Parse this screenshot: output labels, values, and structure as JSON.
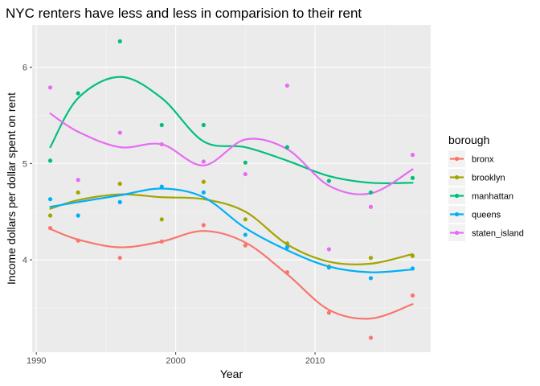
{
  "chart_data": {
    "type": "scatter",
    "title": "NYC renters have less and less in comparision to their rent",
    "xlabel": "Year",
    "ylabel": "Income dollars per dollar spent on rent",
    "xlim": [
      1989.7,
      2018.3
    ],
    "ylim": [
      3.04,
      6.44
    ],
    "xticks": [
      1990,
      2000,
      2010
    ],
    "yticks": [
      4,
      5,
      6
    ],
    "grid": true,
    "smooth": "loess",
    "legend": {
      "title": "borough",
      "position": "right"
    },
    "x": [
      1991,
      1993,
      1996,
      1999,
      2002,
      2005,
      2008,
      2011,
      2014,
      2017
    ],
    "series": [
      {
        "name": "bronx",
        "color": "#F8766D",
        "values": [
          4.33,
          4.2,
          4.02,
          4.19,
          4.36,
          4.15,
          3.87,
          3.45,
          3.19,
          3.63
        ]
      },
      {
        "name": "brooklyn",
        "color": "#A3A500",
        "values": [
          4.46,
          4.7,
          4.79,
          4.42,
          4.81,
          4.42,
          4.17,
          3.93,
          4.02,
          4.04
        ]
      },
      {
        "name": "manhattan",
        "color": "#00BF7D",
        "values": [
          5.03,
          5.73,
          6.27,
          5.4,
          5.4,
          5.01,
          5.17,
          4.82,
          4.7,
          4.85
        ]
      },
      {
        "name": "queens",
        "color": "#00B0F6",
        "values": [
          4.63,
          4.46,
          4.6,
          4.76,
          4.7,
          4.26,
          4.13,
          3.92,
          3.81,
          3.91
        ]
      },
      {
        "name": "staten_island",
        "color": "#E76BF3",
        "values": [
          5.79,
          4.83,
          5.32,
          5.2,
          5.02,
          4.89,
          5.81,
          4.11,
          4.55,
          5.09
        ]
      }
    ],
    "smooth_values": [
      {
        "name": "bronx",
        "values": [
          4.32,
          4.21,
          4.13,
          4.19,
          4.3,
          4.18,
          3.85,
          3.48,
          3.39,
          3.54
        ]
      },
      {
        "name": "brooklyn",
        "values": [
          4.53,
          4.62,
          4.68,
          4.65,
          4.63,
          4.5,
          4.16,
          3.98,
          3.96,
          4.06
        ]
      },
      {
        "name": "manhattan",
        "values": [
          5.17,
          5.68,
          5.9,
          5.68,
          5.23,
          5.17,
          5.03,
          4.87,
          4.8,
          4.8
        ]
      },
      {
        "name": "queens",
        "values": [
          4.55,
          4.6,
          4.67,
          4.74,
          4.65,
          4.33,
          4.1,
          3.93,
          3.87,
          3.9
        ]
      },
      {
        "name": "staten_island",
        "values": [
          5.52,
          5.33,
          5.17,
          5.2,
          4.98,
          5.25,
          5.15,
          4.77,
          4.69,
          4.94
        ]
      }
    ]
  }
}
